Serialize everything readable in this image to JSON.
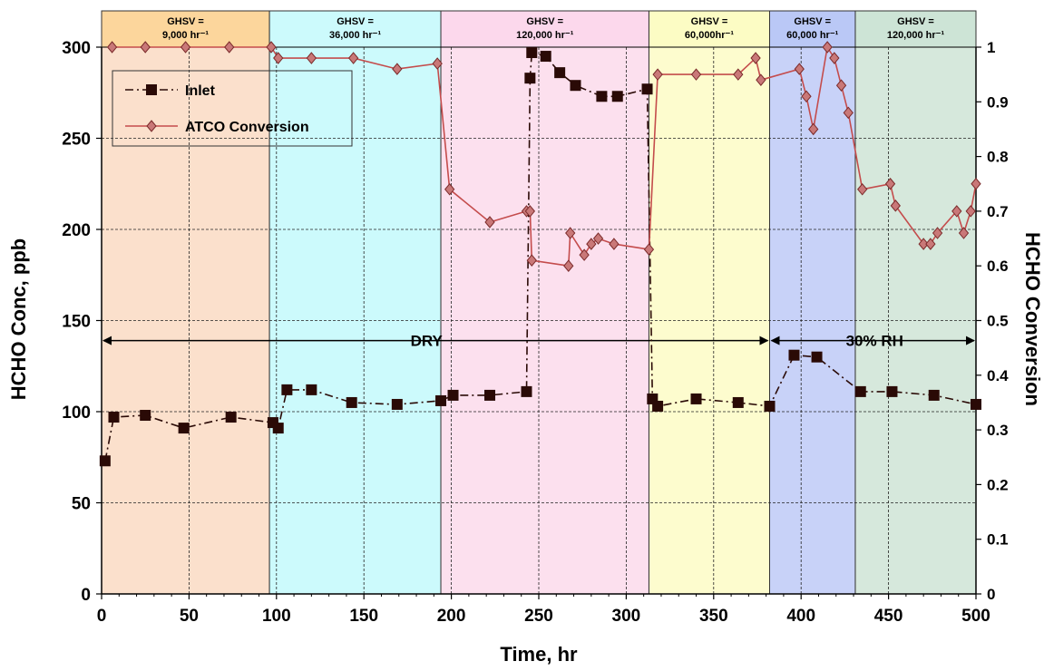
{
  "chart_data": {
    "type": "line",
    "xlabel": "Time, hr",
    "ylabel": "HCHO Conc, ppb",
    "y2label": "HCHO Conversion",
    "xlim": [
      0,
      500
    ],
    "ylim": [
      0,
      300
    ],
    "y2lim": [
      0,
      1
    ],
    "x_ticks": [
      "0",
      "50",
      "100",
      "150",
      "200",
      "250",
      "300",
      "350",
      "400",
      "450",
      "500"
    ],
    "y_ticks": [
      "0",
      "50",
      "100",
      "150",
      "200",
      "250",
      "300"
    ],
    "y2_ticks": [
      "0",
      "0.1",
      "0.2",
      "0.3",
      "0.4",
      "0.5",
      "0.6",
      "0.7",
      "0.8",
      "0.9",
      "1"
    ],
    "grid": true,
    "legend_position": "top-left",
    "regions": [
      {
        "x0": 0,
        "x1": 96,
        "fill": "#fbe0cc",
        "header_fill": "#fcd69c",
        "label1": "GHSV =",
        "label2": "9,000 hr⁻¹"
      },
      {
        "x0": 96,
        "x1": 194,
        "fill": "#ccfafc",
        "header_fill": "#ccfafc",
        "label1": "GHSV =",
        "label2": "36,000 hr⁻¹"
      },
      {
        "x0": 194,
        "x1": 313,
        "fill": "#fce0ee",
        "header_fill": "#fcd8ec",
        "label1": "GHSV =",
        "label2": "120,000 hr⁻¹"
      },
      {
        "x0": 313,
        "x1": 382,
        "fill": "#fdfcce",
        "header_fill": "#fcfcc4",
        "label1": "GHSV =",
        "label2": "60,000hr⁻¹"
      },
      {
        "x0": 382,
        "x1": 431,
        "fill": "#c8d2f8",
        "header_fill": "#bac8f6",
        "label1": "GHSV =",
        "label2": "60,000 hr⁻¹"
      },
      {
        "x0": 431,
        "x1": 500,
        "fill": "#d6e8dc",
        "header_fill": "#cde4d6",
        "label1": "GHSV =",
        "label2": "120,000 hr⁻¹"
      }
    ],
    "annotations": [
      {
        "text": "DRY",
        "x0": 0,
        "x1": 382,
        "y": 139
      },
      {
        "text": "30% RH",
        "x0": 382,
        "x1": 500,
        "y": 139
      }
    ],
    "series": [
      {
        "name": "Inlet",
        "axis": "left",
        "color": "#2a0a06",
        "marker": "square",
        "x": [
          2,
          7,
          25,
          47,
          74,
          98,
          101,
          106,
          120,
          143,
          169,
          194,
          201,
          222,
          243,
          245,
          246,
          254,
          262,
          271,
          286,
          295,
          312,
          315,
          318,
          340,
          364,
          382,
          396,
          409,
          434,
          452,
          476,
          500
        ],
        "y": [
          73,
          97,
          98,
          91,
          97,
          94,
          91,
          112,
          112,
          105,
          104,
          106,
          109,
          109,
          111,
          283,
          297,
          295,
          286,
          279,
          273,
          273,
          277,
          107,
          103,
          107,
          105,
          103,
          131,
          130,
          111,
          111,
          109,
          104
        ]
      },
      {
        "name": "ATCO Conversion",
        "axis": "right",
        "color": "#c44c4c",
        "marker": "diamond",
        "x": [
          6,
          25,
          48,
          73,
          97,
          101,
          120,
          144,
          169,
          192,
          199,
          222,
          243,
          245,
          246,
          267,
          268,
          276,
          280,
          284,
          293,
          313,
          318,
          340,
          364,
          374,
          377,
          399,
          403,
          407,
          415,
          419,
          423,
          427,
          435,
          451,
          454,
          470,
          474,
          478,
          489,
          493,
          497,
          500
        ],
        "y": [
          1.0,
          1.0,
          1.0,
          1.0,
          1.0,
          0.98,
          0.98,
          0.98,
          0.96,
          0.97,
          0.74,
          0.68,
          0.7,
          0.7,
          0.61,
          0.6,
          0.66,
          0.62,
          0.64,
          0.65,
          0.64,
          0.63,
          0.95,
          0.95,
          0.95,
          0.98,
          0.94,
          0.96,
          0.91,
          0.85,
          1.0,
          0.98,
          0.93,
          0.88,
          0.74,
          0.75,
          0.71,
          0.64,
          0.64,
          0.66,
          0.7,
          0.66,
          0.7,
          0.75
        ]
      }
    ]
  }
}
